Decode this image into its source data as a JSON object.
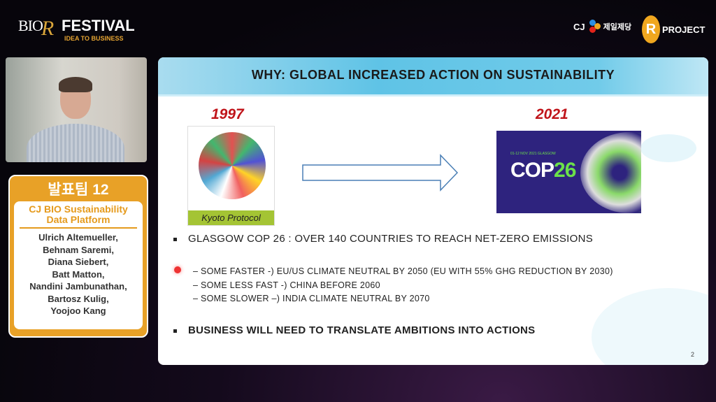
{
  "header": {
    "logo_bio": "BIO",
    "logo_r": "R",
    "logo_festival": "FESTIVAL",
    "logo_tagline": "IDEA TO BUSINESS",
    "sponsor_cj": "CJ",
    "sponsor_cj_korean": "제일제당",
    "sponsor_rproject": "PROJECT",
    "sponsor_rproject_r": "R"
  },
  "team_card": {
    "team": "발표팀 12",
    "project": "CJ BIO Sustainability Data Platform",
    "members": [
      "Ulrich Altemueller,",
      "Behnam Saremi,",
      "Diana Siebert,",
      "Batt Matton,",
      "Nandini Jambunathan,",
      "Bartosz Kulig,",
      "Yoojoo Kang"
    ]
  },
  "slide": {
    "title": "WHY: GLOBAL INCREASED ACTION ON SUSTAINABILITY",
    "year_left": "1997",
    "image_left_label": "Kyoto Protocol",
    "year_right": "2021",
    "image_right_title_a": "COP",
    "image_right_title_b": "26",
    "image_right_date": "01-12 NOV 2021 GLASGOW",
    "bullets": [
      "GLASGOW COP 26 : OVER 140 COUNTRIES TO REACH NET-ZERO EMISSIONS",
      "BUSINESS WILL NEED TO TRANSLATE AMBITIONS INTO ACTIONS"
    ],
    "sub_bullets": [
      "– SOME FASTER -) EU/US CLIMATE NEUTRAL BY 2050 (EU WITH 55% GHG REDUCTION BY 2030)",
      "– SOME LESS FAST -) CHINA BEFORE 2060",
      "– SOME SLOWER –) INDIA CLIMATE NEUTRAL BY 2070"
    ],
    "page_number": "2"
  },
  "colors": {
    "accent_orange": "#e8a127",
    "title_bar": "#5fc3e6",
    "year_red": "#c0141a",
    "kyoto_green": "#a4c434",
    "cop_navy": "#2e237e"
  }
}
